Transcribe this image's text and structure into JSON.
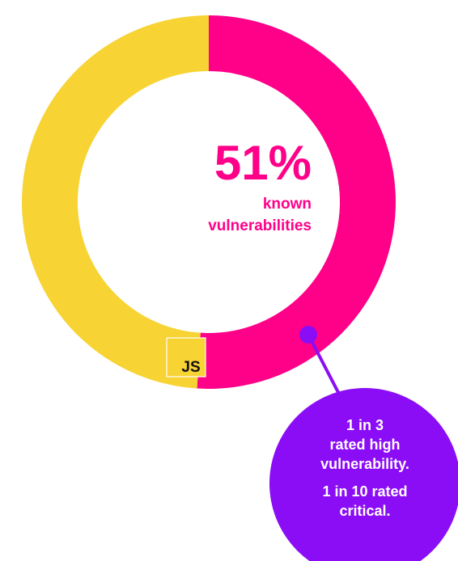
{
  "chart_data": {
    "type": "pie",
    "slices": [
      {
        "label": "known vulnerabilities",
        "value": 51,
        "color": "#ff0089"
      },
      {
        "label": "",
        "value": 49,
        "color": "#f7d334"
      }
    ],
    "headline_value": "51%",
    "headline_label_lines": [
      "known",
      "vulnerabilities"
    ],
    "badge_text": "JS",
    "callout": {
      "color": "#8b0df5",
      "lines_a": [
        "1 in 3",
        "rated high",
        "vulnerability."
      ],
      "lines_b": [
        "1 in 10 rated",
        "critical."
      ]
    }
  }
}
